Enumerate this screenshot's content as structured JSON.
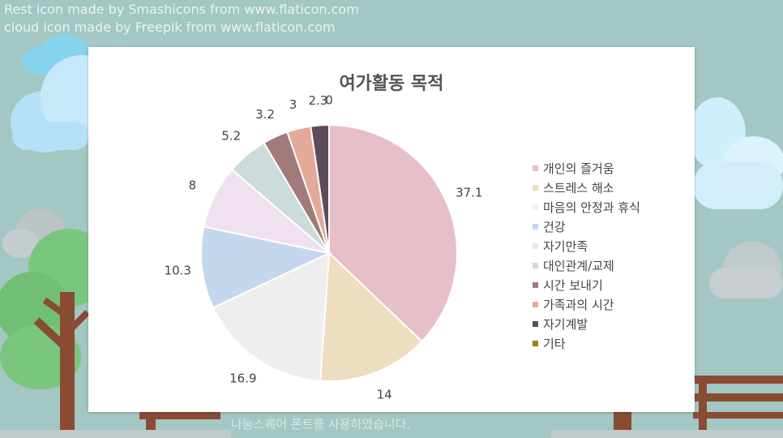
{
  "credits": [
    "Rest icon made by Smashicons from www.flaticon.com",
    "cloud icon made by Freepik from www.flaticon.com"
  ],
  "footer_note": "나눔스퀘어 폰트를 사용하였습니다.",
  "colors": {
    "background": "#a3c7c2",
    "card": "#ffffff",
    "title": "#555555",
    "label": "#444444",
    "slice_border": "#ffffff"
  },
  "chart_data": {
    "type": "pie",
    "title": "여가활동 목적",
    "start_angle_deg": 0,
    "direction": "clockwise",
    "legend_position": "right",
    "categories": [
      "개인의 즐거움",
      "스트레스 해소",
      "마음의 안정과 휴식",
      "건강",
      "자기만족",
      "대인관계/교제",
      "시간 보내기",
      "가족과의 시간",
      "자기계발",
      "기타"
    ],
    "values": [
      37.1,
      14,
      16.9,
      10.3,
      8,
      5.2,
      3.2,
      3,
      2.3,
      0
    ],
    "data_labels": [
      "37.1",
      "14",
      "16.9",
      "10.3",
      "8",
      "5.2",
      "3.2",
      "3",
      "2.3",
      "0"
    ],
    "colors": [
      "#e6bfc9",
      "#ecdebf",
      "#eeeeee",
      "#c5d7ee",
      "#f0e1ef",
      "#ccdcdc",
      "#a17a7a",
      "#e5a998",
      "#5f4b5b",
      "#a07f10"
    ]
  }
}
